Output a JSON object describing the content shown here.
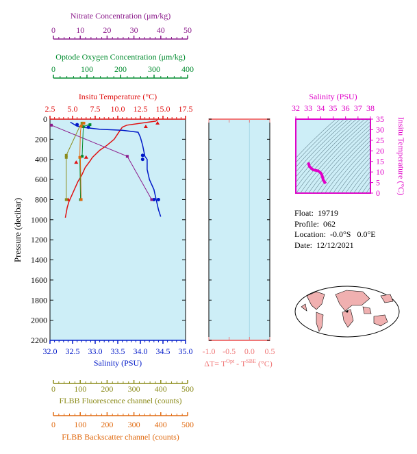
{
  "colors": {
    "nitrate": "#8b1a8b",
    "oxygen": "#008b2e",
    "temperature": "#e01010",
    "salinity": "#0018c8",
    "fluorescence": "#8b8b1a",
    "backscatter": "#e06a10",
    "ts_magenta": "#e000c8",
    "panel_fill": "#cdeef7",
    "delta_axis": "#f07878",
    "land": "#f0b0b0"
  },
  "info": {
    "float": "Float:  19719",
    "profile": "Profile:  062",
    "location": "Location:  -0.0°S   0.0°E",
    "date": "Date:  12/12/2021"
  },
  "chart_data": [
    {
      "type": "line",
      "name": "profile-panel",
      "ylabel": "Pressure (decibar)",
      "ylim": [
        2200,
        0
      ],
      "yticks": [
        0,
        200,
        400,
        600,
        800,
        1000,
        1200,
        1400,
        1600,
        1800,
        2000,
        2200
      ],
      "axes": {
        "nitrate": {
          "label": "Nitrate Concentration (μm/kg)",
          "min": 0,
          "max": 50,
          "ticks": [
            0,
            10,
            20,
            30,
            40,
            50
          ]
        },
        "oxygen": {
          "label": "Optode Oxygen Concentration (μm/kg)",
          "min": 0,
          "max": 400,
          "ticks": [
            0,
            100,
            200,
            300,
            400
          ]
        },
        "temperature": {
          "label": "Insitu Temperature (°C)",
          "min": 2.5,
          "max": 17.5,
          "ticks": [
            "2.5",
            "5.0",
            "7.5",
            "10.0",
            "12.5",
            "15.0",
            "17.5"
          ]
        },
        "salinity": {
          "label": "Salinity (PSU)",
          "min": 32.0,
          "max": 35.0,
          "ticks": [
            "32.0",
            "32.5",
            "33.0",
            "33.5",
            "34.0",
            "34.5",
            "35.0"
          ]
        },
        "fluorescence": {
          "label": "FLBB Fluorescence channel (counts)",
          "min": 0,
          "max": 500,
          "ticks": [
            0,
            100,
            200,
            300,
            400,
            500
          ]
        },
        "backscatter": {
          "label": "FLBB Backscatter channel (counts)",
          "min": 0,
          "max": 500,
          "ticks": [
            0,
            100,
            200,
            300,
            400,
            500
          ]
        }
      },
      "series": [
        {
          "key": "temperature",
          "x": [
            14.4,
            14.2,
            11.0,
            10.5,
            10.2,
            9.6,
            8.8,
            8.0,
            7.2,
            6.9,
            6.4,
            6.0,
            5.6,
            5.2,
            4.9,
            4.6,
            4.4,
            4.3,
            4.2
          ],
          "y": [
            5,
            20,
            60,
            80,
            120,
            200,
            260,
            310,
            380,
            420,
            480,
            560,
            620,
            700,
            760,
            820,
            880,
            930,
            980
          ],
          "markers": {
            "x": [
              14.4,
              13.1,
              6.5,
              5.4,
              4.5
            ],
            "y": [
              40,
              75,
              380,
              430,
              800
            ]
          }
        },
        {
          "key": "salinity",
          "x": [
            32.45,
            32.6,
            32.8,
            33.1,
            33.6,
            33.95,
            34.0,
            34.05,
            34.1,
            34.15,
            34.15,
            34.2,
            34.3,
            34.35,
            34.4,
            34.45
          ],
          "y": [
            30,
            70,
            85,
            100,
            110,
            130,
            180,
            260,
            370,
            400,
            500,
            600,
            700,
            800,
            900,
            970
          ],
          "markers": {
            "x": [
              32.6,
              32.85,
              34.05,
              34.05,
              34.3,
              34.4
            ],
            "y": [
              55,
              80,
              360,
              400,
              800,
              800
            ]
          }
        },
        {
          "key": "nitrate",
          "x": [
            0.5,
            28.5,
            37.5
          ],
          "y": [
            60,
            370,
            800
          ],
          "markers": {
            "x": [
              0.5,
              28.5,
              37.5
            ],
            "y": [
              60,
              370,
              800
            ]
          }
        },
        {
          "key": "oxygen",
          "x": [
            118,
            102,
            98,
            95,
            88,
            90
          ],
          "y": [
            50,
            70,
            100,
            360,
            380,
            800
          ],
          "markers": {
            "x": [
              118,
              98,
              95,
              90
            ],
            "y": [
              55,
              75,
              370,
              800
            ]
          }
        },
        {
          "key": "fluorescence",
          "x": [
            118,
            110,
            60,
            60,
            60
          ],
          "y": [
            40,
            70,
            360,
            380,
            800
          ],
          "markers": {
            "x": [
              118,
              60,
              60,
              60
            ],
            "y": [
              40,
              360,
              380,
              800
            ]
          }
        },
        {
          "key": "backscatter",
          "x": [
            125,
            115,
            112,
            110,
            112,
            115
          ],
          "y": [
            40,
            70,
            130,
            360,
            380,
            800
          ],
          "markers": {
            "x": [
              125,
              115,
              110,
              115
            ],
            "y": [
              40,
              70,
              380,
              800
            ]
          }
        }
      ]
    },
    {
      "type": "line",
      "name": "delta-panel",
      "xlabel": "ΔT= T^Opt - T^SBE (°C)",
      "xlim": [
        -1.0,
        0.5
      ],
      "xticks": [
        "-1.0",
        "-0.5",
        "0.0",
        "0.5"
      ],
      "ylim": [
        2200,
        0
      ],
      "series": []
    },
    {
      "type": "scatter",
      "name": "ts-diagram",
      "title": "Salinity (PSU)",
      "ylabel": "Insitu Temperature (°C)",
      "xlim": [
        32,
        38
      ],
      "ylim": [
        0,
        35
      ],
      "xticks": [
        32,
        33,
        34,
        35,
        36,
        37,
        38
      ],
      "yticks": [
        0,
        5,
        10,
        15,
        20,
        25,
        30,
        35
      ],
      "series": [
        {
          "key": "ts",
          "x": [
            33.0,
            33.1,
            33.4,
            33.8,
            34.0,
            34.1,
            34.15,
            34.2,
            34.3,
            34.4
          ],
          "y": [
            14.5,
            12.5,
            11.0,
            10.5,
            9.6,
            8.5,
            7.5,
            6.3,
            5.3,
            4.5
          ]
        }
      ]
    }
  ]
}
